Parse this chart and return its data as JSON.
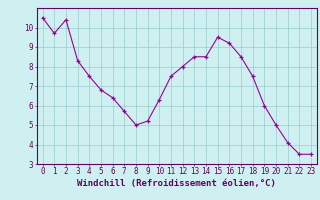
{
  "x": [
    0,
    1,
    2,
    3,
    4,
    5,
    6,
    7,
    8,
    9,
    10,
    11,
    12,
    13,
    14,
    15,
    16,
    17,
    18,
    19,
    20,
    21,
    22,
    23
  ],
  "y": [
    10.5,
    9.7,
    10.4,
    8.3,
    7.5,
    6.8,
    6.4,
    5.7,
    5.0,
    5.2,
    6.3,
    7.5,
    8.0,
    8.5,
    8.5,
    9.5,
    9.2,
    8.5,
    7.5,
    6.0,
    5.0,
    4.1,
    3.5,
    3.5
  ],
  "xlabel": "Windchill (Refroidissement éolien,°C)",
  "line_color": "#990099",
  "marker_color": "#990099",
  "bg_color": "#cff0f0",
  "grid_color": "#99cccc",
  "ylim": [
    3,
    11
  ],
  "xlim": [
    -0.5,
    23.5
  ],
  "yticks": [
    3,
    4,
    5,
    6,
    7,
    8,
    9,
    10
  ],
  "xticks": [
    0,
    1,
    2,
    3,
    4,
    5,
    6,
    7,
    8,
    9,
    10,
    11,
    12,
    13,
    14,
    15,
    16,
    17,
    18,
    19,
    20,
    21,
    22,
    23
  ],
  "tick_label_fontsize": 5.5,
  "xlabel_fontsize": 6.5,
  "spine_color": "#660066",
  "text_color": "#660066"
}
